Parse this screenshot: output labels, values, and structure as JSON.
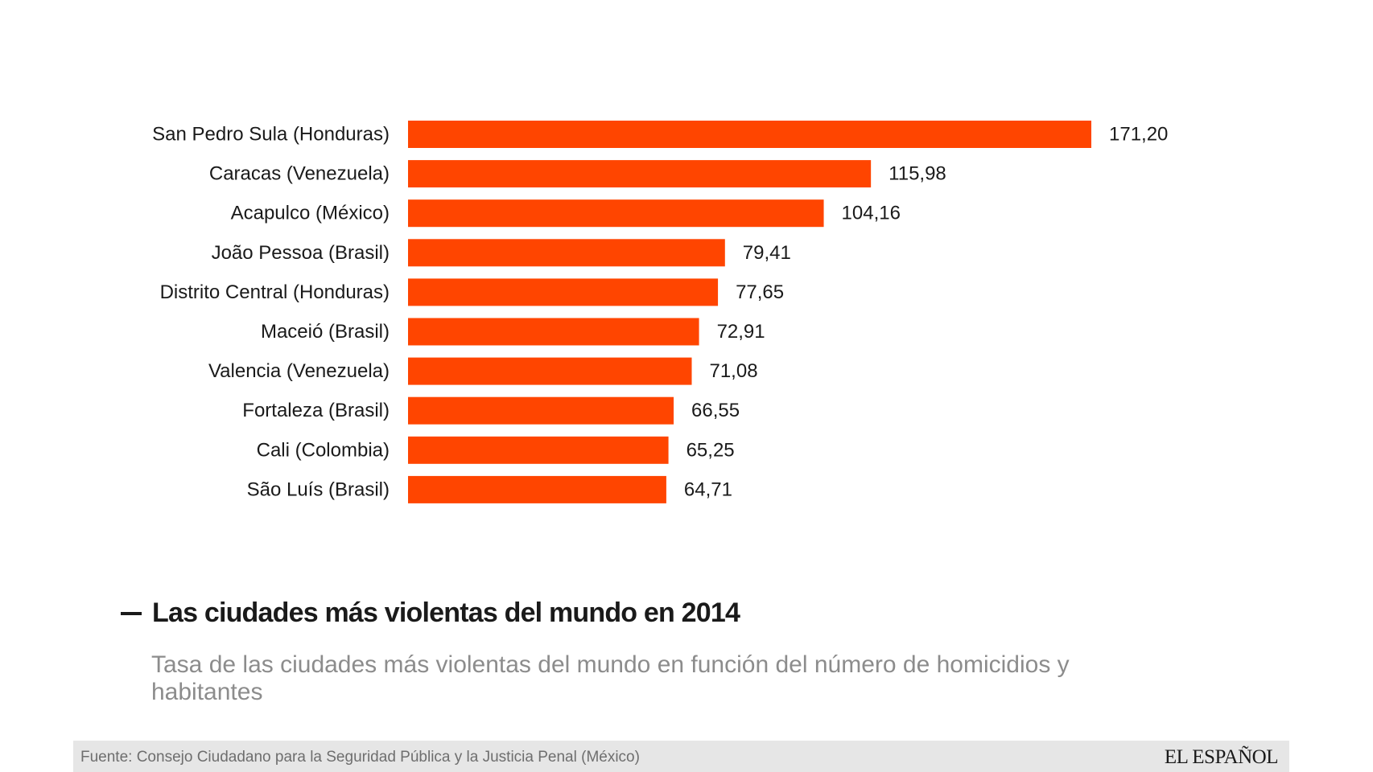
{
  "chart_data": {
    "type": "bar",
    "orientation": "horizontal",
    "title": "Las ciudades más violentas del mundo en 2014",
    "subtitle": "Tasa de las ciudades más violentas del mundo en función del número de homicidios y habitantes",
    "categories": [
      "San Pedro Sula (Honduras)",
      "Caracas (Venezuela)",
      "Acapulco (México)",
      "João Pessoa (Brasil)",
      "Distrito Central (Honduras)",
      "Maceió (Brasil)",
      "Valencia (Venezuela)",
      "Fortaleza (Brasil)",
      "Cali (Colombia)",
      "São Luís (Brasil)"
    ],
    "values": [
      171.2,
      115.98,
      104.16,
      79.41,
      77.65,
      72.91,
      71.08,
      66.55,
      65.25,
      64.71
    ],
    "value_labels": [
      "171,20",
      "115,98",
      "104,16",
      "79,41",
      "77,65",
      "72,91",
      "71,08",
      "66,55",
      "65,25",
      "64,71"
    ],
    "xlim": [
      0,
      171.2
    ],
    "xlabel": "",
    "ylabel": "",
    "grid": false,
    "legend": "none",
    "bar_color": "#ff4500"
  },
  "footer": {
    "source": "Fuente: Consejo Ciudadano para la Seguridad Pública y la Justicia Penal (México)",
    "brand": "EL ESPAÑOL"
  },
  "colors": {
    "bar": "#ff4500",
    "text": "#1a1a1a",
    "subtitle": "#8c8c8c",
    "footer_bg": "#e6e6e6"
  }
}
